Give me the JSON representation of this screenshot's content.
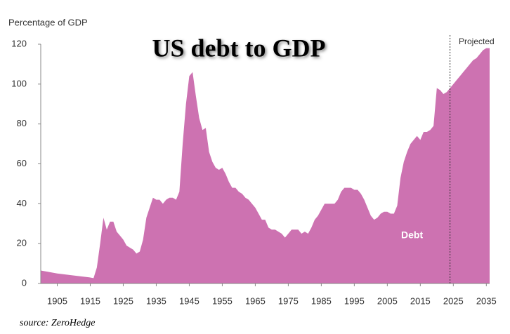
{
  "chart_data": {
    "type": "area",
    "title": "US debt to GDP",
    "ylabel": "Percentage of GDP",
    "source": "source: ZeroHedge",
    "projected_label": "Projected",
    "projected_start": 2024,
    "x": [
      1900,
      1905,
      1910,
      1915,
      1916,
      1917,
      1918,
      1919,
      1920,
      1921,
      1922,
      1923,
      1924,
      1925,
      1926,
      1927,
      1928,
      1929,
      1930,
      1931,
      1932,
      1933,
      1934,
      1935,
      1936,
      1937,
      1938,
      1939,
      1940,
      1941,
      1942,
      1943,
      1944,
      1945,
      1946,
      1947,
      1948,
      1949,
      1950,
      1951,
      1952,
      1953,
      1954,
      1955,
      1956,
      1957,
      1958,
      1959,
      1960,
      1961,
      1962,
      1963,
      1964,
      1965,
      1966,
      1967,
      1968,
      1969,
      1970,
      1971,
      1972,
      1973,
      1974,
      1975,
      1976,
      1977,
      1978,
      1979,
      1980,
      1981,
      1982,
      1983,
      1984,
      1985,
      1986,
      1987,
      1988,
      1989,
      1990,
      1991,
      1992,
      1993,
      1994,
      1995,
      1996,
      1997,
      1998,
      1999,
      2000,
      2001,
      2002,
      2003,
      2004,
      2005,
      2006,
      2007,
      2008,
      2009,
      2010,
      2011,
      2012,
      2013,
      2014,
      2015,
      2016,
      2017,
      2018,
      2019,
      2020,
      2021,
      2022,
      2023,
      2024,
      2025,
      2026,
      2027,
      2028,
      2029,
      2030,
      2031,
      2032,
      2033,
      2034,
      2035
    ],
    "series": [
      {
        "name": "Debt",
        "color": "#cd72b1",
        "values": [
          6.5,
          5,
          4,
          3,
          2.7,
          8,
          20,
          33,
          27,
          31,
          31,
          26,
          24,
          22,
          19,
          18,
          17,
          15,
          16,
          22,
          33,
          38,
          43,
          42,
          42,
          40,
          42,
          43,
          43,
          42,
          46,
          70,
          90,
          104,
          106,
          94,
          83,
          77,
          78,
          66,
          61,
          58,
          57,
          58,
          55,
          51,
          48,
          48,
          46,
          45,
          43,
          42,
          40,
          38,
          35,
          32,
          32,
          28,
          27,
          27,
          26,
          25,
          23,
          25,
          27,
          27,
          27,
          25,
          26,
          25,
          28,
          32,
          34,
          37,
          40,
          40,
          40,
          40,
          42,
          46,
          48,
          48,
          48,
          47,
          47,
          45,
          42,
          38,
          34,
          32,
          33,
          35,
          36,
          36,
          35,
          35,
          39,
          53,
          61,
          66,
          70,
          72,
          74,
          72,
          76,
          76,
          77,
          79,
          98,
          97,
          95,
          96,
          98,
          100,
          102,
          104,
          106,
          108,
          110,
          112,
          113,
          115,
          117,
          118
        ]
      }
    ],
    "xlim": [
      1900,
      2036
    ],
    "ylim": [
      0,
      120
    ],
    "xticks": [
      1905,
      1915,
      1925,
      1935,
      1945,
      1955,
      1965,
      1975,
      1985,
      1995,
      2005,
      2015,
      2025,
      2035
    ],
    "yticks": [
      0,
      20,
      40,
      60,
      80,
      100,
      120
    ]
  }
}
